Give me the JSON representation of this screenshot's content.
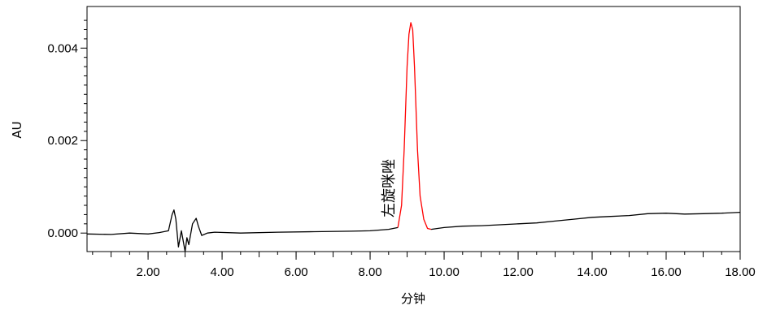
{
  "chart_data": {
    "type": "line",
    "xlabel": "分钟",
    "ylabel": "AU",
    "xlim": [
      0.35,
      18.0
    ],
    "ylim": [
      -0.0004,
      0.0049
    ],
    "x_tick_labels": [
      "2.00",
      "4.00",
      "6.00",
      "8.00",
      "10.00",
      "12.00",
      "14.00",
      "16.00",
      "18.00"
    ],
    "y_tick_labels": [
      "0.000",
      "0.002",
      "0.004"
    ],
    "grid": false,
    "peak_label": "左旋咪唑",
    "colors": {
      "baseline": "#000000",
      "peak": "#ff0000",
      "axis": "#000000"
    },
    "series": [
      {
        "color": "#000000",
        "x": [
          0.35,
          1.0,
          1.5,
          2.0,
          2.3,
          2.55,
          2.65,
          2.7,
          2.75,
          2.82,
          2.9,
          3.0,
          3.05,
          3.1,
          3.2,
          3.3,
          3.36,
          3.45,
          3.6,
          3.8,
          4.5,
          5.5,
          6.5,
          7.5,
          8.0,
          8.5,
          8.75
        ],
        "y": [
          -2e-05,
          -3e-05,
          0.0,
          -2e-05,
          1e-05,
          5e-05,
          0.0004,
          0.0005,
          0.0003,
          -0.0003,
          5e-05,
          -0.0004,
          -0.0001,
          -0.00025,
          0.0002,
          0.00032,
          0.00015,
          -5e-05,
          0.0,
          2e-05,
          0.0,
          2e-05,
          3e-05,
          4e-05,
          5e-05,
          8e-05,
          0.00012
        ]
      },
      {
        "color": "#ff0000",
        "x": [
          8.75,
          8.85,
          8.92,
          9.0,
          9.05,
          9.1,
          9.15,
          9.2,
          9.28,
          9.35,
          9.45,
          9.55,
          9.65
        ],
        "y": [
          0.00012,
          0.0006,
          0.0018,
          0.0036,
          0.0043,
          0.00455,
          0.0044,
          0.0036,
          0.0018,
          0.0008,
          0.0003,
          0.0001,
          8e-05
        ]
      },
      {
        "color": "#000000",
        "x": [
          9.65,
          10.0,
          10.5,
          11.0,
          11.5,
          12.0,
          12.5,
          13.0,
          13.5,
          14.0,
          14.5,
          15.0,
          15.5,
          16.0,
          16.5,
          17.0,
          17.5,
          18.0
        ],
        "y": [
          8e-05,
          0.00012,
          0.00015,
          0.00016,
          0.00018,
          0.0002,
          0.00022,
          0.00026,
          0.0003,
          0.00034,
          0.00036,
          0.00038,
          0.00042,
          0.00043,
          0.00041,
          0.00042,
          0.00043,
          0.00045
        ]
      }
    ]
  }
}
